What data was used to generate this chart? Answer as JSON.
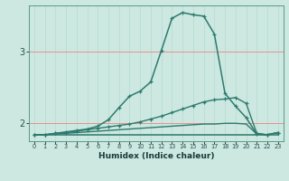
{
  "xlabel": "Humidex (Indice chaleur)",
  "bg_color": "#cce8e0",
  "line_color": "#2d7a6e",
  "hgrid_color": "#e89090",
  "vgrid_color": "#b8ddd6",
  "xlim": [
    -0.5,
    23.5
  ],
  "ylim": [
    1.75,
    3.65
  ],
  "yticks": [
    2,
    3
  ],
  "ytick_labels": [
    "2",
    "3"
  ],
  "xticks": [
    0,
    1,
    2,
    3,
    4,
    5,
    6,
    7,
    8,
    9,
    10,
    11,
    12,
    13,
    14,
    15,
    16,
    17,
    18,
    19,
    20,
    21,
    22,
    23
  ],
  "line1_x": [
    0,
    1,
    2,
    3,
    4,
    5,
    6,
    7,
    8,
    9,
    10,
    11,
    12,
    13,
    14,
    15,
    16,
    17,
    18,
    19,
    20,
    21,
    22,
    23
  ],
  "line1_y": [
    1.84,
    1.84,
    1.86,
    1.88,
    1.9,
    1.92,
    1.96,
    2.05,
    2.22,
    2.38,
    2.45,
    2.58,
    3.02,
    3.47,
    3.55,
    3.52,
    3.5,
    3.25,
    2.42,
    2.24,
    2.08,
    1.85,
    1.84,
    1.87
  ],
  "line2_x": [
    0,
    1,
    2,
    3,
    4,
    5,
    6,
    7,
    8,
    9,
    10,
    11,
    12,
    13,
    14,
    15,
    16,
    17,
    18,
    19,
    20,
    21,
    22,
    23
  ],
  "line2_y": [
    1.84,
    1.84,
    1.86,
    1.87,
    1.89,
    1.91,
    1.93,
    1.95,
    1.97,
    1.99,
    2.02,
    2.06,
    2.1,
    2.15,
    2.2,
    2.25,
    2.3,
    2.33,
    2.34,
    2.36,
    2.28,
    1.86,
    1.84,
    1.87
  ],
  "line3_x": [
    0,
    1,
    2,
    3,
    4,
    5,
    6,
    7,
    8,
    9,
    10,
    11,
    12,
    13,
    14,
    15,
    16,
    17,
    18,
    19,
    20,
    21,
    22,
    23
  ],
  "line3_y": [
    1.84,
    1.84,
    1.85,
    1.86,
    1.87,
    1.88,
    1.89,
    1.9,
    1.91,
    1.92,
    1.93,
    1.94,
    1.95,
    1.96,
    1.97,
    1.98,
    1.99,
    1.99,
    2.0,
    2.0,
    1.99,
    1.85,
    1.84,
    1.87
  ],
  "line4_x": [
    0,
    1,
    2,
    3,
    4,
    5,
    6,
    7,
    8,
    9,
    10,
    11,
    12,
    13,
    14,
    15,
    16,
    17,
    18,
    19,
    20,
    21,
    22,
    23
  ],
  "line4_y": [
    1.84,
    1.84,
    1.84,
    1.84,
    1.84,
    1.84,
    1.84,
    1.84,
    1.84,
    1.84,
    1.84,
    1.84,
    1.84,
    1.84,
    1.84,
    1.84,
    1.84,
    1.84,
    1.84,
    1.84,
    1.84,
    1.84,
    1.84,
    1.84
  ]
}
